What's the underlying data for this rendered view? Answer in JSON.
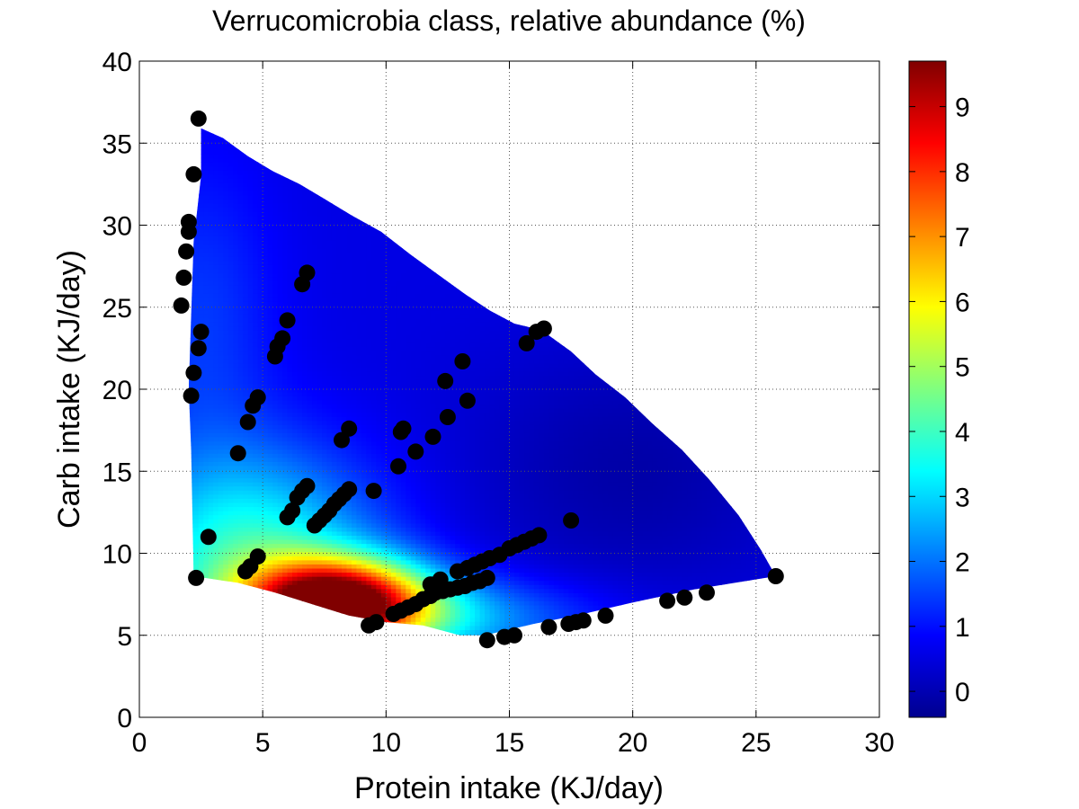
{
  "chart_data": {
    "type": "heatmap",
    "title": "Verrucomicrobia class, relative abundance (%)",
    "xlabel": "Protein intake (KJ/day)",
    "ylabel": "Carb intake (KJ/day)",
    "xlim": [
      0,
      30
    ],
    "ylim": [
      0,
      40
    ],
    "xticks": [
      0,
      5,
      10,
      15,
      20,
      25,
      30
    ],
    "yticks": [
      0,
      5,
      10,
      15,
      20,
      25,
      30,
      35,
      40
    ],
    "grid": true,
    "colorbar": {
      "label": "relative abundance (%)",
      "range": [
        -0.4,
        9.7
      ],
      "ticks": [
        0,
        1,
        2,
        3,
        4,
        5,
        6,
        7,
        8,
        9
      ],
      "colormap": "jet"
    },
    "surface_boundary": [
      [
        2.5,
        35.9
      ],
      [
        3.4,
        35.3
      ],
      [
        4.4,
        34.2
      ],
      [
        5.4,
        33.3
      ],
      [
        6.5,
        32.5
      ],
      [
        7.5,
        31.6
      ],
      [
        8.6,
        30.6
      ],
      [
        9.8,
        29.6
      ],
      [
        11.0,
        28.2
      ],
      [
        12.1,
        27.0
      ],
      [
        13.2,
        25.8
      ],
      [
        14.2,
        24.8
      ],
      [
        15.2,
        24.0
      ],
      [
        16.3,
        23.6
      ],
      [
        17.5,
        22.3
      ],
      [
        18.5,
        20.9
      ],
      [
        19.7,
        19.5
      ],
      [
        20.8,
        17.9
      ],
      [
        22.0,
        16.3
      ],
      [
        23.1,
        14.5
      ],
      [
        24.3,
        12.3
      ],
      [
        25.2,
        10.2
      ],
      [
        25.8,
        8.6
      ],
      [
        22.5,
        7.8
      ],
      [
        20.0,
        7.0
      ],
      [
        18.0,
        6.3
      ],
      [
        16.0,
        5.7
      ],
      [
        14.0,
        5.0
      ],
      [
        13.0,
        5.0
      ],
      [
        11.5,
        5.6
      ],
      [
        10.0,
        5.8
      ],
      [
        8.5,
        6.2
      ],
      [
        7.0,
        6.9
      ],
      [
        5.5,
        7.6
      ],
      [
        4.0,
        8.2
      ],
      [
        2.2,
        8.6
      ],
      [
        2.1,
        16.3
      ],
      [
        2.0,
        20.0
      ],
      [
        2.1,
        24.5
      ],
      [
        2.2,
        29.0
      ],
      [
        2.5,
        33.0
      ]
    ],
    "points": [
      [
        2.4,
        36.5
      ],
      [
        2.2,
        33.1
      ],
      [
        2.0,
        30.2
      ],
      [
        2.0,
        29.6
      ],
      [
        1.9,
        28.4
      ],
      [
        1.8,
        26.8
      ],
      [
        1.7,
        25.1
      ],
      [
        2.5,
        23.5
      ],
      [
        2.4,
        22.5
      ],
      [
        2.2,
        21.0
      ],
      [
        2.1,
        19.6
      ],
      [
        2.3,
        8.5
      ],
      [
        2.8,
        11.0
      ],
      [
        4.0,
        16.1
      ],
      [
        4.4,
        18.0
      ],
      [
        4.3,
        8.9
      ],
      [
        4.5,
        9.2
      ],
      [
        4.8,
        9.8
      ],
      [
        4.8,
        19.5
      ],
      [
        4.6,
        19.0
      ],
      [
        5.5,
        22.0
      ],
      [
        5.6,
        22.6
      ],
      [
        5.8,
        23.1
      ],
      [
        6.0,
        24.2
      ],
      [
        6.6,
        26.4
      ],
      [
        6.8,
        27.1
      ],
      [
        6.0,
        12.2
      ],
      [
        6.2,
        12.6
      ],
      [
        6.4,
        13.4
      ],
      [
        6.6,
        13.8
      ],
      [
        6.8,
        14.1
      ],
      [
        7.1,
        11.7
      ],
      [
        7.3,
        12.0
      ],
      [
        7.5,
        12.3
      ],
      [
        7.7,
        12.6
      ],
      [
        7.9,
        13.0
      ],
      [
        8.1,
        13.3
      ],
      [
        8.3,
        13.6
      ],
      [
        8.5,
        13.9
      ],
      [
        8.2,
        16.9
      ],
      [
        8.5,
        17.6
      ],
      [
        9.5,
        13.8
      ],
      [
        9.3,
        5.6
      ],
      [
        9.6,
        5.8
      ],
      [
        10.3,
        6.3
      ],
      [
        10.6,
        6.5
      ],
      [
        10.9,
        6.7
      ],
      [
        11.2,
        6.9
      ],
      [
        11.5,
        7.2
      ],
      [
        11.8,
        7.4
      ],
      [
        12.0,
        7.6
      ],
      [
        12.3,
        7.7
      ],
      [
        12.6,
        7.8
      ],
      [
        12.9,
        7.9
      ],
      [
        13.2,
        8.0
      ],
      [
        13.5,
        8.2
      ],
      [
        13.8,
        8.3
      ],
      [
        14.1,
        8.5
      ],
      [
        11.8,
        8.1
      ],
      [
        12.2,
        8.4
      ],
      [
        12.9,
        8.9
      ],
      [
        13.3,
        9.1
      ],
      [
        13.6,
        9.3
      ],
      [
        13.9,
        9.5
      ],
      [
        14.2,
        9.7
      ],
      [
        14.6,
        9.9
      ],
      [
        15.0,
        10.3
      ],
      [
        15.3,
        10.5
      ],
      [
        15.6,
        10.7
      ],
      [
        15.9,
        10.9
      ],
      [
        16.2,
        11.1
      ],
      [
        10.5,
        15.3
      ],
      [
        10.6,
        17.4
      ],
      [
        10.7,
        17.6
      ],
      [
        11.2,
        16.2
      ],
      [
        11.9,
        17.1
      ],
      [
        12.5,
        18.3
      ],
      [
        12.4,
        20.5
      ],
      [
        13.3,
        19.3
      ],
      [
        13.1,
        21.7
      ],
      [
        14.1,
        4.7
      ],
      [
        14.8,
        4.9
      ],
      [
        15.2,
        5.0
      ],
      [
        16.6,
        5.5
      ],
      [
        17.4,
        5.7
      ],
      [
        17.7,
        5.8
      ],
      [
        18.0,
        5.9
      ],
      [
        18.9,
        6.2
      ],
      [
        21.4,
        7.1
      ],
      [
        22.1,
        7.3
      ],
      [
        23.0,
        7.6
      ],
      [
        25.8,
        8.6
      ],
      [
        17.5,
        12.0
      ],
      [
        15.7,
        22.8
      ],
      [
        16.1,
        23.5
      ],
      [
        16.4,
        23.7
      ]
    ]
  }
}
